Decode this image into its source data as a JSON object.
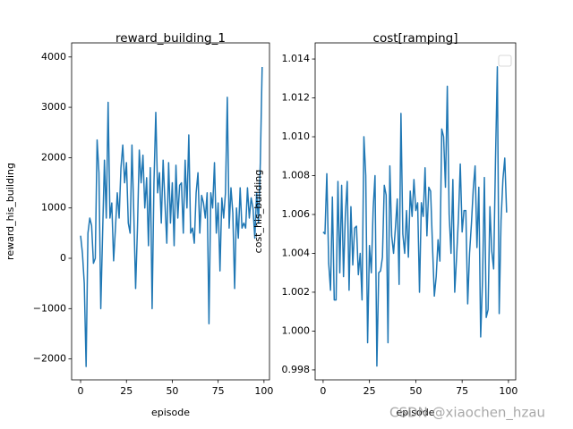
{
  "chart_data": [
    {
      "type": "line",
      "title": "reward_building_1",
      "xlabel": "episode",
      "ylabel": "reward_his_building",
      "color": "#1f77b4",
      "x": [
        0,
        1,
        2,
        3,
        4,
        5,
        6,
        7,
        8,
        9,
        10,
        11,
        12,
        13,
        14,
        15,
        16,
        17,
        18,
        19,
        20,
        21,
        22,
        23,
        24,
        25,
        26,
        27,
        28,
        29,
        30,
        31,
        32,
        33,
        34,
        35,
        36,
        37,
        38,
        39,
        40,
        41,
        42,
        43,
        44,
        45,
        46,
        47,
        48,
        49,
        50,
        51,
        52,
        53,
        54,
        55,
        56,
        57,
        58,
        59,
        60,
        61,
        62,
        63,
        64,
        65,
        66,
        67,
        68,
        69,
        70,
        71,
        72,
        73,
        74,
        75,
        76,
        77,
        78,
        79,
        80,
        81,
        82,
        83,
        84,
        85,
        86,
        87,
        88,
        89,
        90,
        91,
        92,
        93,
        94,
        95,
        96,
        97,
        98,
        99
      ],
      "values": [
        450,
        100,
        -500,
        -2150,
        500,
        800,
        650,
        -100,
        0,
        2350,
        1700,
        -1000,
        500,
        1950,
        800,
        3100,
        800,
        1100,
        -50,
        600,
        1300,
        800,
        1800,
        2250,
        1500,
        1900,
        700,
        500,
        2250,
        900,
        -600,
        600,
        2150,
        1500,
        2050,
        1000,
        1600,
        250,
        1800,
        -1000,
        1500,
        2900,
        1300,
        1700,
        700,
        1950,
        1100,
        300,
        1900,
        700,
        1500,
        250,
        1850,
        800,
        1450,
        1500,
        500,
        1950,
        1000,
        2450,
        500,
        600,
        300,
        1300,
        1700,
        500,
        1250,
        1100,
        800,
        1300,
        -1300,
        1300,
        1000,
        1900,
        500,
        1100,
        -250,
        1200,
        800,
        1300,
        3200,
        600,
        1400,
        900,
        -600,
        1000,
        400,
        1400,
        600,
        700,
        600,
        1400,
        800,
        1200,
        1000,
        400,
        1300,
        700,
        1900,
        3800
      ],
      "xlim": [
        -4.9,
        103
      ],
      "xticks": [
        0,
        25,
        50,
        75,
        100
      ],
      "ylim": [
        -2415,
        4280
      ],
      "yticks": [
        {
          "value": -2000,
          "label": "−2000"
        },
        {
          "value": -1000,
          "label": "−1000"
        },
        0,
        1000,
        2000,
        3000,
        4000
      ]
    },
    {
      "type": "line",
      "title": "cost[ramping]",
      "xlabel": "episode",
      "ylabel": "cost_his_building",
      "color": "#1f77b4",
      "legend": "upper right",
      "x": [
        0,
        1,
        2,
        3,
        4,
        5,
        6,
        7,
        8,
        9,
        10,
        11,
        12,
        13,
        14,
        15,
        16,
        17,
        18,
        19,
        20,
        21,
        22,
        23,
        24,
        25,
        26,
        27,
        28,
        29,
        30,
        31,
        32,
        33,
        34,
        35,
        36,
        37,
        38,
        39,
        40,
        41,
        42,
        43,
        44,
        45,
        46,
        47,
        48,
        49,
        50,
        51,
        52,
        53,
        54,
        55,
        56,
        57,
        58,
        59,
        60,
        61,
        62,
        63,
        64,
        65,
        66,
        67,
        68,
        69,
        70,
        71,
        72,
        73,
        74,
        75,
        76,
        77,
        78,
        79,
        80,
        81,
        82,
        83,
        84,
        85,
        86,
        87,
        88,
        89,
        90,
        91,
        92,
        93,
        94,
        95,
        96,
        97,
        98,
        99
      ],
      "values": [
        1.0051,
        1.005,
        1.0081,
        1.0035,
        1.0021,
        1.0069,
        1.0016,
        1.0016,
        1.0077,
        1.003,
        1.0075,
        1.0028,
        1.006,
        1.0077,
        1.0021,
        1.0064,
        1.0034,
        1.0053,
        1.0054,
        1.0029,
        1.004,
        1.0016,
        1.01,
        1.008,
        0.9994,
        1.0044,
        1.003,
        1.0063,
        1.008,
        0.9982,
        1.003,
        1.0031,
        1.0038,
        1.0075,
        1.007,
        0.9994,
        1.0085,
        1.0049,
        1.004,
        1.0053,
        1.0068,
        1.0024,
        1.0112,
        1.005,
        1.004,
        1.0062,
        1.0038,
        1.0072,
        1.0059,
        1.0078,
        1.0062,
        1.0066,
        1.002,
        1.0066,
        1.0059,
        1.0084,
        1.0049,
        1.0074,
        1.0072,
        1.0044,
        1.0018,
        1.0028,
        1.0047,
        1.0036,
        1.0104,
        1.01,
        1.0074,
        1.0126,
        1.006,
        1.004,
        1.0078,
        1.002,
        1.0038,
        1.0058,
        1.0086,
        1.0051,
        1.0062,
        1.0062,
        1.0014,
        1.004,
        1.0055,
        1.0073,
        1.0085,
        1.0043,
        1.0074,
        0.9997,
        1.0026,
        1.0079,
        1.0007,
        1.0011,
        1.0064,
        1.0041,
        1.0032,
        1.0088,
        1.0136,
        1.0009,
        1.0057,
        1.0078,
        1.0089,
        1.0061
      ],
      "xlim": [
        -4.3,
        103.9
      ],
      "xticks": [
        0,
        25,
        50,
        75,
        100
      ],
      "ylim": [
        0.99749,
        1.01483
      ],
      "yticks": [
        0.998,
        {
          "value": 1,
          "label": "1.000"
        },
        1.002,
        1.004,
        1.006,
        1.008,
        {
          "value": 1.01,
          "label": "1.010"
        },
        1.012,
        1.014
      ]
    }
  ],
  "watermark": "CSDN @xiaochen_hzau"
}
